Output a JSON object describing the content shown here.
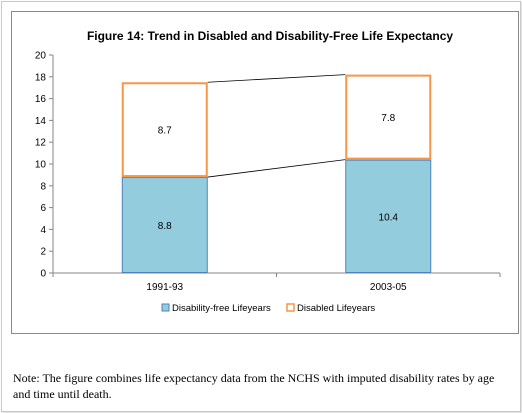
{
  "note": "Note: The figure combines life expectancy data from the NCHS with imputed disability rates by age and time until death.",
  "colors": {
    "disability_free_fill": "#93cddd",
    "disability_free_stroke": "#4f81bd",
    "disabled_fill": "#ffffff",
    "disabled_stroke": "#f79646",
    "axis": "#868686",
    "connector": "#000000"
  },
  "chart_data": {
    "type": "bar",
    "stacked": true,
    "title": "Figure 14: Trend in Disabled and Disability-Free Life Expectancy",
    "xlabel": "",
    "ylabel": "",
    "categories": [
      "1991-93",
      "2003-05"
    ],
    "series": [
      {
        "name": "Disability-free Lifeyears",
        "values": [
          8.8,
          10.4
        ]
      },
      {
        "name": "Disabled Lifeyears",
        "values": [
          8.7,
          7.8
        ]
      }
    ],
    "ylim": [
      0,
      20
    ],
    "yticks": [
      0,
      2,
      4,
      6,
      8,
      10,
      12,
      14,
      16,
      18,
      20
    ],
    "data_labels": true,
    "series_connector_lines": true,
    "grid": false,
    "legend": "bottom"
  }
}
